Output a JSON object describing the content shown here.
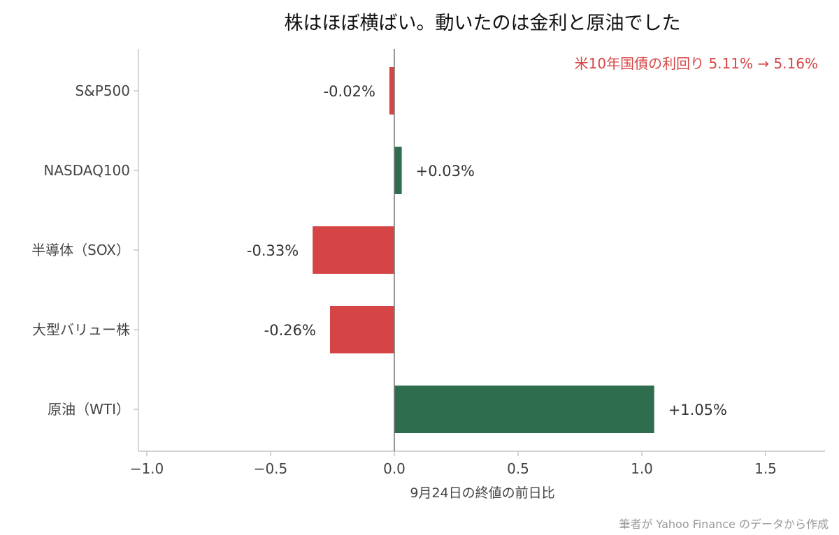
{
  "chart_data": {
    "type": "bar",
    "orientation": "horizontal",
    "title": "株はほぼ横ばい。動いたのは金利と原油でした",
    "xlabel": "9月24日の終値の前日比",
    "ylabel": "",
    "xlim": [
      -1.0,
      1.75
    ],
    "xticks": [
      -1.0,
      -0.5,
      0.0,
      0.5,
      1.0,
      1.5
    ],
    "xtick_labels": [
      "−1.0",
      "−0.5",
      "0.0",
      "0.5",
      "1.0",
      "1.5"
    ],
    "categories": [
      "S&P500",
      "NASDAQ100",
      "半導体（SOX）",
      "大型バリュー株",
      "原油（WTI）"
    ],
    "values": [
      -0.02,
      0.03,
      -0.33,
      -0.26,
      1.05
    ],
    "value_labels": [
      "-0.02%",
      "+0.03%",
      "-0.33%",
      "-0.26%",
      "+1.05%"
    ],
    "positive_color": "#2e6e4e",
    "negative_color": "#d64545",
    "annotation": {
      "text": "米10年国債の利回り  5.11% → 5.16%",
      "color": "#d64545",
      "position": "top-right"
    },
    "grid": false,
    "legend": "none"
  },
  "source_note": "筆者が Yahoo Finance のデータから作成"
}
